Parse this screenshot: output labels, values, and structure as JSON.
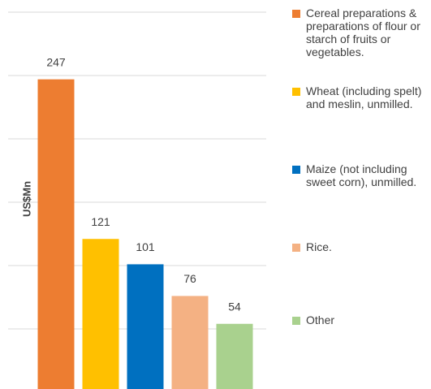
{
  "chart_data": {
    "type": "bar",
    "y_label": "US$Mn",
    "categories": [
      "Cereal preparations & preparations of flour or starch of fruits or vegetables.",
      "Wheat (including spelt) and meslin, unmilled.",
      "Maize (not including sweet corn), unmilled.",
      "Rice.",
      "Other"
    ],
    "values": [
      247,
      121,
      101,
      76,
      54
    ],
    "colors": [
      "#ED7D31",
      "#FFC000",
      "#0070C0",
      "#F4B183",
      "#A9D18E"
    ],
    "ylim": [
      0,
      300
    ],
    "yticks": [
      0,
      50,
      100,
      150,
      200,
      250,
      300
    ],
    "grid": true,
    "legend": "right"
  }
}
